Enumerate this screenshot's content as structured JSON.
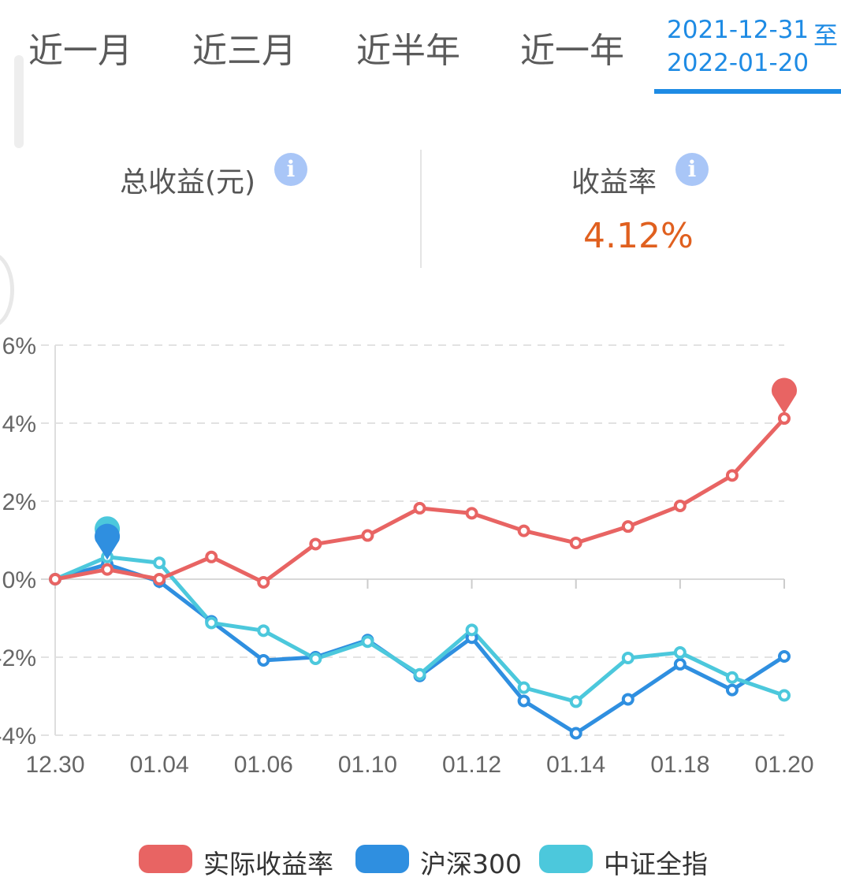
{
  "tabs": [
    {
      "label": "近一月"
    },
    {
      "label": "近三月"
    },
    {
      "label": "近半年"
    },
    {
      "label": "近一年"
    }
  ],
  "date_range": {
    "start": "2021-12-31",
    "separator": "至",
    "end": "2022-01-20",
    "active": true
  },
  "stats": {
    "total_profit": {
      "label": "总收益(元)",
      "value": ""
    },
    "return_rate": {
      "label": "收益率",
      "value": "4.12%"
    }
  },
  "colors": {
    "actual": "#e86463",
    "hs300": "#2f8fe0",
    "csi_all": "#4cc8dc",
    "accent": "#1e8be4",
    "value": "#e0601f"
  },
  "chart_data": {
    "type": "line",
    "x": [
      "12.30",
      "12.31",
      "01.04",
      "01.05",
      "01.06",
      "01.07",
      "01.10",
      "01.11",
      "01.12",
      "01.13",
      "01.14",
      "01.17",
      "01.18",
      "01.19",
      "01.20"
    ],
    "xtick_labels": [
      "12.30",
      "01.04",
      "01.06",
      "01.10",
      "01.12",
      "01.14",
      "01.18",
      "01.20"
    ],
    "ytick_labels": [
      "6%",
      "4%",
      "2%",
      "0%",
      "-2%",
      "-4%"
    ],
    "ylim": [
      -4,
      6
    ],
    "grid": true,
    "legend_position": "bottom",
    "series": [
      {
        "name": "实际收益率",
        "color": "#e86463",
        "values": [
          0,
          0.25,
          0,
          0.57,
          -0.08,
          0.9,
          1.12,
          1.82,
          1.69,
          1.24,
          0.93,
          1.35,
          1.88,
          2.66,
          4.12
        ]
      },
      {
        "name": "沪深300",
        "color": "#2f8fe0",
        "values": [
          0,
          0.38,
          -0.06,
          -1.08,
          -2.08,
          -2.0,
          -1.56,
          -2.48,
          -1.5,
          -3.12,
          -3.95,
          -3.08,
          -2.18,
          -2.84,
          -1.98
        ]
      },
      {
        "name": "中证全指",
        "color": "#4cc8dc",
        "values": [
          0,
          0.57,
          0.42,
          -1.12,
          -1.32,
          -2.04,
          -1.6,
          -2.44,
          -1.3,
          -2.78,
          -3.14,
          -2.02,
          -1.88,
          -2.52,
          -2.98
        ]
      }
    ],
    "markers": [
      {
        "series": "实际收益率",
        "x": "01.20"
      },
      {
        "series": "中证全指",
        "x": "12.31"
      },
      {
        "series": "沪深300",
        "x": "12.31"
      }
    ]
  }
}
